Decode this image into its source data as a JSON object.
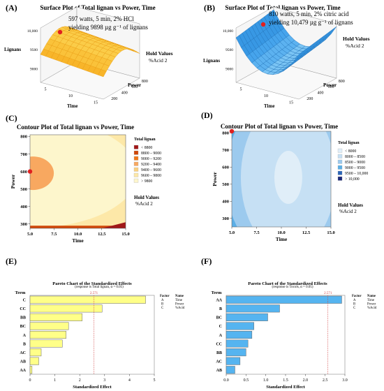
{
  "panels": {
    "A": {
      "label": "(A)",
      "title": "Surface Plot of Total lignan vs Power, Time",
      "annotation": [
        "597 watts, 5 min, 2% HCl",
        "yielding 9898 µg g⁻¹ of lignans"
      ],
      "hold_title": "Hold Values",
      "hold_value": "%Acid  2"
    },
    "B": {
      "label": "(B)",
      "title": "Surface Plot of Total lignan vs Power, Time",
      "annotation": [
        "810 watts, 5 min, 2% citric acid",
        "yielding 10,479 µg g⁻¹ of lignans"
      ],
      "hold_title": "Hold Values",
      "hold_value": "%Acid  2"
    },
    "C": {
      "label": "(C)",
      "title": "Contour Plot of Total lignan vs Power, Time",
      "hold_title": "Hold Values",
      "hold_value": "%Acid  2"
    },
    "D": {
      "label": "(D)",
      "title": "Contour Plot of Total lignan vs Power, Time",
      "hold_title": "Hold Values",
      "hold_value": "%Acid  2"
    },
    "E": {
      "label": "(E)",
      "title": "Pareto Chart of the Standardized Effects",
      "subtitle": "(response is Total lignan, α = 0.05)",
      "factor_header": [
        "Factor",
        "Name"
      ],
      "factors": [
        [
          "A",
          "Time"
        ],
        [
          "B",
          "Power"
        ],
        [
          "C",
          "%Acid"
        ]
      ]
    },
    "F": {
      "label": "(F)",
      "title": "Pareto Chart of the Standardized Effects",
      "subtitle": "(response is Tocols, α = 0.05)",
      "factor_header": [
        "Factor",
        "Name"
      ],
      "factors": [
        [
          "A",
          "Time"
        ],
        [
          "B",
          "Power"
        ],
        [
          "C",
          "%Acid"
        ]
      ]
    }
  },
  "colors": {
    "yellow_bar": "#ffff88",
    "blue_bar": "#55b4f0",
    "ref_line": "#d04040",
    "point": "#e02020"
  },
  "chart_data": [
    {
      "id": "A",
      "type": "surface",
      "xlabel": "Time",
      "ylabel": "Power",
      "zlabel": "Lignans",
      "x_ticks": [
        "5",
        "10",
        "15"
      ],
      "y_ticks": [
        "200",
        "400",
        "600",
        "800"
      ],
      "z_ticks": [
        "9000",
        "9500",
        "10,000"
      ],
      "highlight": {
        "time": 5,
        "power": 597,
        "lignans": 9898
      }
    },
    {
      "id": "B",
      "type": "surface",
      "xlabel": "Time",
      "ylabel": "Power",
      "zlabel": "Lignans",
      "x_ticks": [
        "5",
        "10",
        "15"
      ],
      "y_ticks": [
        "200",
        "400",
        "600",
        "800"
      ],
      "z_ticks": [
        "9000",
        "9500",
        "10,000"
      ],
      "highlight": {
        "time": 5,
        "power": 810,
        "lignans": 10479
      }
    },
    {
      "id": "C",
      "type": "contour",
      "xlabel": "Time",
      "ylabel": "Power",
      "xlim": [
        5,
        15
      ],
      "ylim": [
        275,
        810
      ],
      "x_ticks": [
        "5.0",
        "7.5",
        "10.0",
        "12.5",
        "15.0"
      ],
      "y_ticks": [
        "300",
        "400",
        "500",
        "600",
        "700",
        "800"
      ],
      "legend_title": "Total lignan",
      "legend": [
        {
          "label": "<   8800",
          "color": "#a01818"
        },
        {
          "label": "8800 –  9000",
          "color": "#d0480a"
        },
        {
          "label": "9000 –  9200",
          "color": "#f07818"
        },
        {
          "label": "9200 –  9400",
          "color": "#f8a860"
        },
        {
          "label": "9400 –  9600",
          "color": "#fad080"
        },
        {
          "label": "9600 –  9800",
          "color": "#fde8a8"
        },
        {
          "label": ">   9800",
          "color": "#fdf6cc"
        }
      ],
      "highlight": {
        "time": 5,
        "power": 600
      }
    },
    {
      "id": "D",
      "type": "contour",
      "xlabel": "Time",
      "ylabel": "Power",
      "xlim": [
        5,
        15
      ],
      "ylim": [
        250,
        810
      ],
      "x_ticks": [
        "5.0",
        "7.5",
        "10.0",
        "12.5",
        "15.0"
      ],
      "y_ticks": [
        "300",
        "400",
        "500",
        "600",
        "700",
        "800"
      ],
      "legend_title": "Total lignan",
      "legend": [
        {
          "label": "<   8000",
          "color": "#e0eef8"
        },
        {
          "label": "8000 –  8500",
          "color": "#c6e0f4"
        },
        {
          "label": "8500 –  9000",
          "color": "#9ccaee"
        },
        {
          "label": "9000 –  9500",
          "color": "#5aaee6"
        },
        {
          "label": "9500 – 10,000",
          "color": "#2c66b8"
        },
        {
          "label": ">  10,000",
          "color": "#1a2878"
        }
      ],
      "highlight": {
        "time": 5,
        "power": 810
      }
    },
    {
      "id": "E",
      "type": "bar",
      "orientation": "horizontal",
      "ylabel": "Term",
      "xlabel": "Standardized Effect",
      "categories": [
        "C",
        "CC",
        "BB",
        "BC",
        "A",
        "B",
        "AC",
        "AB",
        "AA"
      ],
      "values": [
        4.65,
        2.9,
        2.1,
        1.55,
        1.45,
        1.3,
        0.45,
        0.35,
        0.08
      ],
      "reference_line": 2.571,
      "reference_label": "2.571",
      "xlim": [
        0,
        5
      ],
      "x_ticks": [
        0,
        1,
        2,
        3,
        4,
        5
      ]
    },
    {
      "id": "F",
      "type": "bar",
      "orientation": "horizontal",
      "ylabel": "Term",
      "xlabel": "Standardized Effect",
      "categories": [
        "AA",
        "B",
        "BC",
        "C",
        "A",
        "CC",
        "BB",
        "AC",
        "AB"
      ],
      "values": [
        2.92,
        1.35,
        1.05,
        0.7,
        0.65,
        0.55,
        0.5,
        0.35,
        0.22
      ],
      "reference_line": 2.571,
      "reference_label": "2.571",
      "xlim": [
        0,
        3
      ],
      "x_ticks": [
        "0.0",
        "0.5",
        "1.0",
        "1.5",
        "2.0",
        "2.5",
        "3.0"
      ]
    }
  ]
}
